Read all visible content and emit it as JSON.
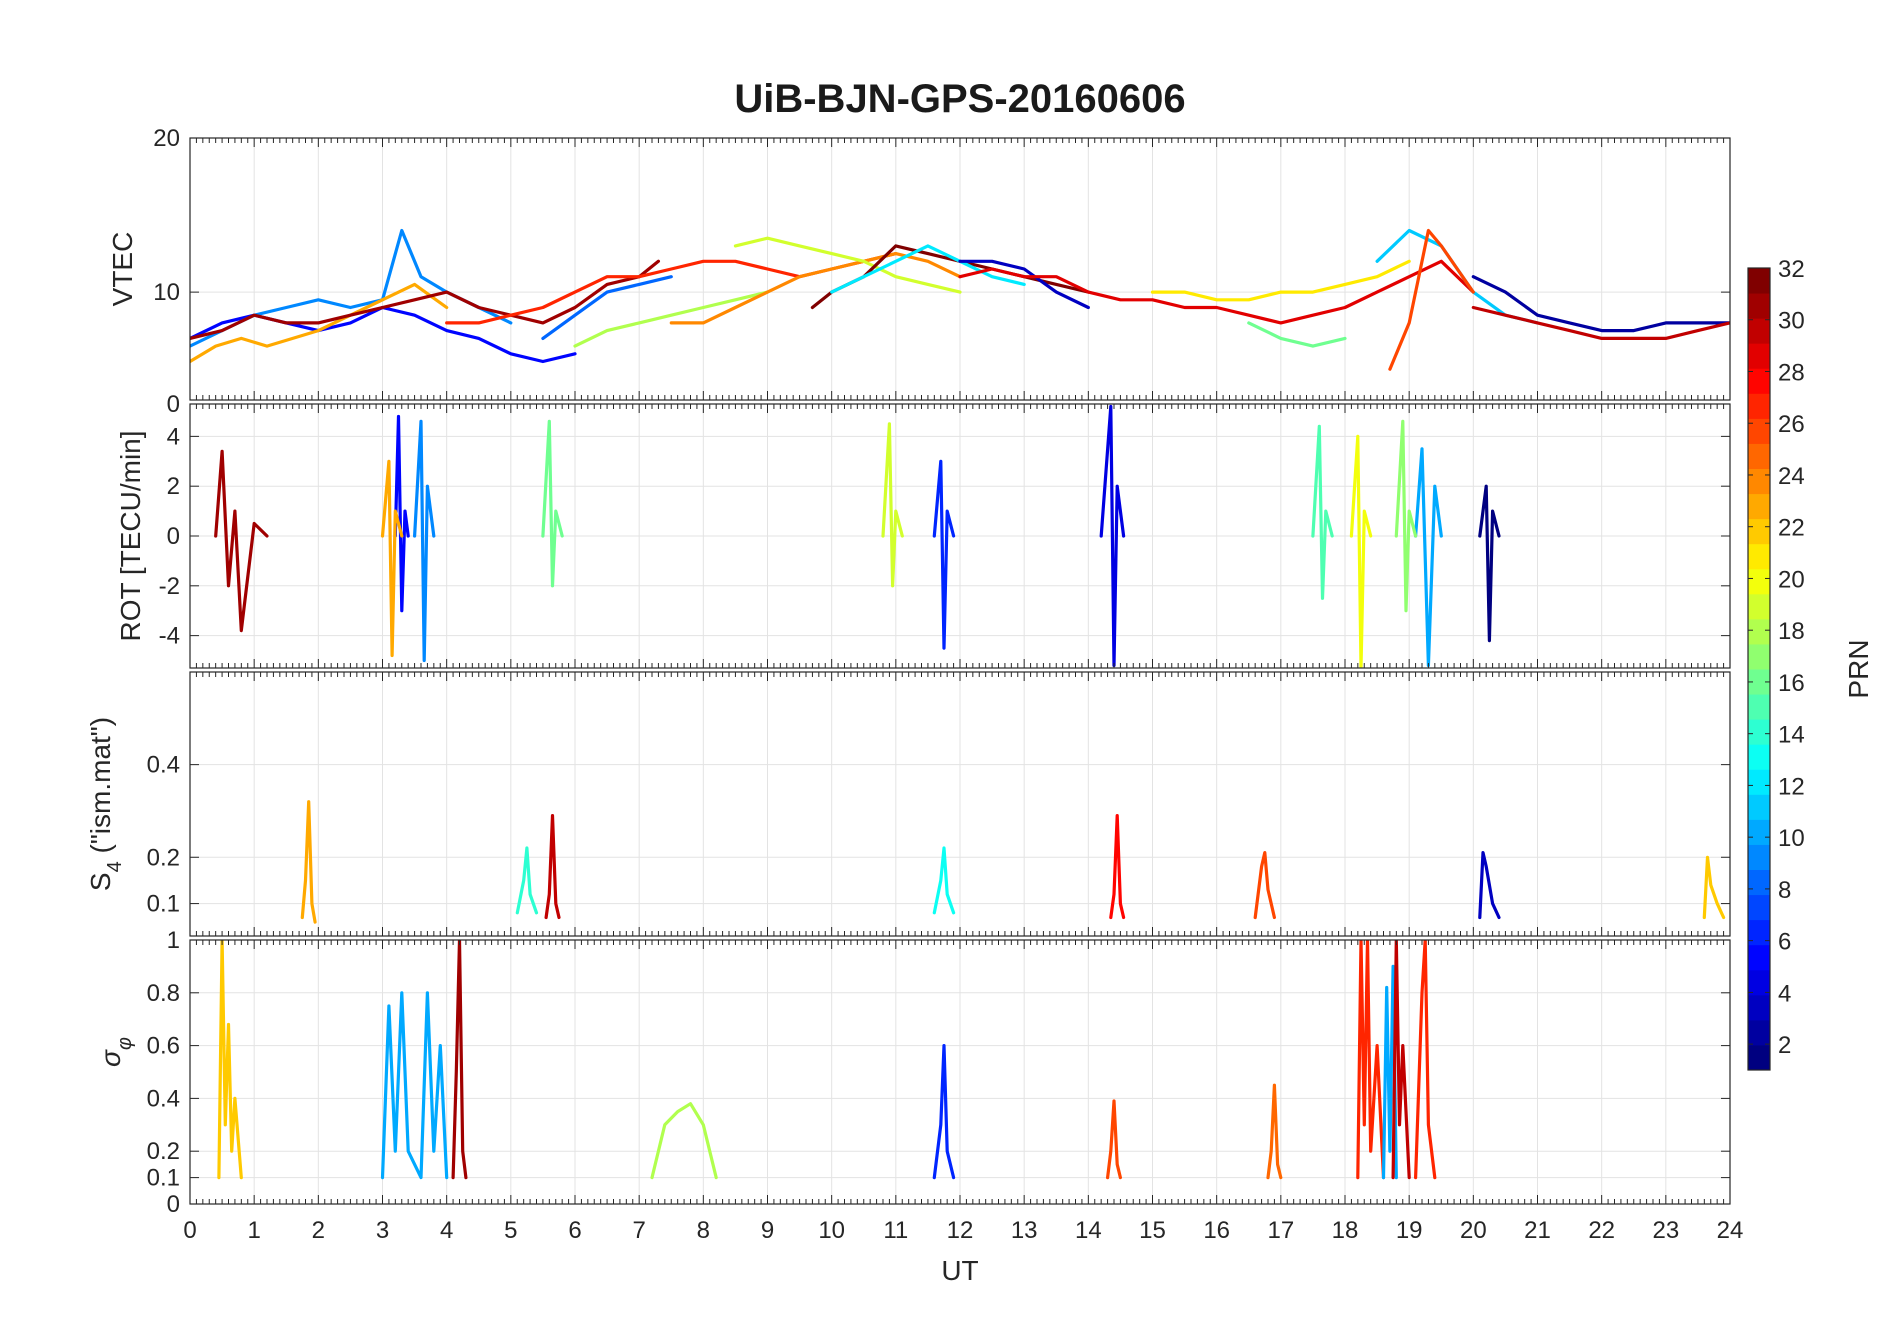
{
  "figure": {
    "title": "UiB-BJN-GPS-20160606"
  },
  "chart_data": [
    {
      "type": "line",
      "panel": "VTEC",
      "ylabel": "VTEC",
      "ylim": [
        3,
        20
      ],
      "yticks": [
        10,
        20
      ],
      "xlim": [
        0,
        24
      ],
      "grid": true,
      "series": [
        {
          "prn": 5,
          "x": [
            0,
            0.5,
            1,
            1.5,
            2,
            2.5,
            3,
            3.5,
            4,
            4.5,
            5,
            5.5,
            6
          ],
          "y": [
            7,
            8,
            8.5,
            8,
            7.5,
            8,
            9,
            8.5,
            7.5,
            7,
            6,
            5.5,
            6
          ]
        },
        {
          "prn": 9,
          "x": [
            0,
            0.5,
            1,
            1.5,
            2,
            2.5,
            3,
            3.3,
            3.6,
            4,
            4.5,
            5
          ],
          "y": [
            6.5,
            7.5,
            8.5,
            9,
            9.5,
            9,
            9.5,
            14,
            11,
            10,
            9,
            8
          ]
        },
        {
          "prn": 23,
          "x": [
            0,
            0.4,
            0.8,
            1.2,
            1.6,
            2,
            2.5,
            3,
            3.5,
            4
          ],
          "y": [
            5.5,
            6.5,
            7,
            6.5,
            7,
            7.5,
            8.5,
            9.5,
            10.5,
            9
          ]
        },
        {
          "prn": 31,
          "x": [
            0,
            0.5,
            1,
            1.5,
            2,
            2.5,
            3,
            3.5,
            4,
            4.5,
            5,
            5.5,
            6,
            6.5,
            7,
            7.3
          ],
          "y": [
            7,
            7.5,
            8.5,
            8,
            8,
            8.5,
            9,
            9.5,
            10,
            9,
            8.5,
            8,
            9,
            10.5,
            11,
            12
          ]
        },
        {
          "prn": 27,
          "x": [
            4,
            4.5,
            5,
            5.5,
            6,
            6.5,
            7,
            7.5,
            8,
            8.5,
            9,
            9.5,
            10,
            10.5,
            11
          ],
          "y": [
            8,
            8,
            8.5,
            9,
            10,
            11,
            11,
            11.5,
            12,
            12,
            11.5,
            11,
            11.5,
            12,
            12.5
          ]
        },
        {
          "prn": 8,
          "x": [
            5.5,
            6,
            6.5,
            7,
            7.5
          ],
          "y": [
            7,
            8.5,
            10,
            10.5,
            11
          ]
        },
        {
          "prn": 18,
          "x": [
            6,
            6.5,
            7,
            7.5,
            8,
            8.5,
            9
          ],
          "y": [
            6.5,
            7.5,
            8,
            8.5,
            9,
            9.5,
            10
          ]
        },
        {
          "prn": 24,
          "x": [
            7.5,
            8,
            8.5,
            9,
            9.5,
            10,
            10.5,
            11,
            11.5,
            12
          ],
          "y": [
            8,
            8,
            9,
            10,
            11,
            11.5,
            12,
            12.5,
            12,
            11
          ]
        },
        {
          "prn": 19,
          "x": [
            8.5,
            9,
            9.5,
            10,
            10.5,
            11,
            11.5,
            12
          ],
          "y": [
            13,
            13.5,
            13,
            12.5,
            12,
            11,
            10.5,
            10
          ]
        },
        {
          "prn": 32,
          "x": [
            9.7,
            10,
            10.5,
            11,
            11.5,
            12,
            12.5,
            13,
            13.5,
            14
          ],
          "y": [
            9,
            10,
            11,
            13,
            12.5,
            12,
            11.5,
            11,
            10.5,
            10
          ]
        },
        {
          "prn": 12,
          "x": [
            10,
            10.5,
            11,
            11.5,
            12,
            12.5,
            13
          ],
          "y": [
            10,
            11,
            12,
            13,
            12,
            11,
            10.5
          ]
        },
        {
          "prn": 3,
          "x": [
            12,
            12.5,
            13,
            13.5,
            14
          ],
          "y": [
            12,
            12,
            11.5,
            10,
            9
          ]
        },
        {
          "prn": 29,
          "x": [
            12,
            12.5,
            13,
            13.5,
            14,
            14.5,
            15,
            15.5,
            16,
            16.5,
            17,
            17.5,
            18,
            18.5,
            19,
            19.5,
            20
          ],
          "y": [
            11,
            11.5,
            11,
            11,
            10,
            9.5,
            9.5,
            9,
            9,
            8.5,
            8,
            8.5,
            9,
            10,
            11,
            12,
            10
          ]
        },
        {
          "prn": 21,
          "x": [
            15,
            15.5,
            16,
            16.5,
            17,
            17.5,
            18,
            18.5,
            19
          ],
          "y": [
            10,
            10,
            9.5,
            9.5,
            10,
            10,
            10.5,
            11,
            12
          ]
        },
        {
          "prn": 16,
          "x": [
            16.5,
            17,
            17.5,
            18
          ],
          "y": [
            8,
            7,
            6.5,
            7
          ]
        },
        {
          "prn": 11,
          "x": [
            18.5,
            19,
            19.5,
            20,
            20.5,
            21
          ],
          "y": [
            12,
            14,
            13,
            10,
            8.5,
            8
          ]
        },
        {
          "prn": 26,
          "x": [
            18.7,
            19,
            19.3,
            19.5,
            20
          ],
          "y": [
            5,
            8,
            14,
            13,
            10
          ]
        },
        {
          "prn": 2,
          "x": [
            20,
            20.5,
            21,
            21.5,
            22,
            22.5,
            23,
            23.5,
            24
          ],
          "y": [
            11,
            10,
            8.5,
            8,
            7.5,
            7.5,
            8,
            8,
            8
          ]
        },
        {
          "prn": 30,
          "x": [
            20,
            20.5,
            21,
            21.5,
            22,
            22.5,
            23,
            23.5,
            24
          ],
          "y": [
            9,
            8.5,
            8,
            7.5,
            7,
            7,
            7,
            7.5,
            8
          ]
        }
      ]
    },
    {
      "type": "line",
      "panel": "ROT",
      "ylabel": "ROT [TECU/min]",
      "ylim": [
        -5.3,
        5.3
      ],
      "yticks": [
        -4,
        -2,
        0,
        2,
        4
      ],
      "xlim": [
        0,
        24
      ],
      "grid": true,
      "series": [
        {
          "prn": 5,
          "x": [
            3.2,
            3.25,
            3.3,
            3.35,
            3.4
          ],
          "y": [
            0,
            4.8,
            -3,
            1,
            0
          ]
        },
        {
          "prn": 9,
          "x": [
            3.5,
            3.6,
            3.65,
            3.7,
            3.8
          ],
          "y": [
            0,
            4.6,
            -5,
            2,
            0
          ]
        },
        {
          "prn": 4,
          "x": [
            14.2,
            14.35,
            14.4,
            14.45,
            14.55
          ],
          "y": [
            0,
            5.2,
            -5.2,
            2,
            0
          ]
        },
        {
          "prn": 10,
          "x": [
            19.1,
            19.2,
            19.3,
            19.4,
            19.5
          ],
          "y": [
            0,
            3.5,
            -5.2,
            2,
            0
          ]
        },
        {
          "prn": 20,
          "x": [
            18.1,
            18.2,
            18.25,
            18.3,
            18.4
          ],
          "y": [
            0,
            4,
            -5.3,
            1,
            0
          ]
        },
        {
          "prn": 19,
          "x": [
            10.8,
            10.9,
            10.95,
            11.0,
            11.1
          ],
          "y": [
            0,
            4.5,
            -2,
            1,
            0
          ]
        },
        {
          "prn": 6,
          "x": [
            11.6,
            11.7,
            11.75,
            11.8,
            11.9
          ],
          "y": [
            0,
            3,
            -4.5,
            1,
            0
          ]
        },
        {
          "prn": 1,
          "x": [
            20.1,
            20.2,
            20.25,
            20.3,
            20.4
          ],
          "y": [
            0,
            2,
            -4.2,
            1,
            0
          ]
        },
        {
          "prn": 23,
          "x": [
            3,
            3.1,
            3.15,
            3.2,
            3.3
          ],
          "y": [
            0,
            3,
            -4.8,
            1,
            0
          ]
        },
        {
          "prn": 31,
          "x": [
            0.4,
            0.5,
            0.6,
            0.7,
            0.8,
            1.0,
            1.2
          ],
          "y": [
            0,
            3.4,
            -2,
            1,
            -3.8,
            0.5,
            0
          ]
        },
        {
          "prn": 16,
          "x": [
            5.5,
            5.6,
            5.65,
            5.7,
            5.8
          ],
          "y": [
            0,
            4.6,
            -2,
            1,
            0
          ]
        },
        {
          "prn": 15,
          "x": [
            17.5,
            17.6,
            17.65,
            17.7,
            17.8
          ],
          "y": [
            0,
            4.4,
            -2.5,
            1,
            0
          ]
        },
        {
          "prn": 17,
          "x": [
            18.8,
            18.9,
            18.95,
            19.0,
            19.1
          ],
          "y": [
            0,
            4.6,
            -3,
            1,
            0
          ]
        }
      ]
    },
    {
      "type": "line",
      "panel": "S4",
      "ylabel": "S4 (\"ism.mat\")",
      "ylim": [
        0.03,
        0.6
      ],
      "yticks": [
        0.1,
        0.2,
        0.4
      ],
      "xlim": [
        0,
        24
      ],
      "grid": true,
      "series": [
        {
          "prn": 23,
          "x": [
            1.75,
            1.8,
            1.85,
            1.9,
            1.95
          ],
          "y": [
            0.07,
            0.15,
            0.32,
            0.1,
            0.06
          ]
        },
        {
          "prn": 30,
          "x": [
            5.55,
            5.6,
            5.65,
            5.7,
            5.75
          ],
          "y": [
            0.07,
            0.12,
            0.29,
            0.1,
            0.07
          ]
        },
        {
          "prn": 28,
          "x": [
            14.35,
            14.4,
            14.45,
            14.5,
            14.55
          ],
          "y": [
            0.07,
            0.12,
            0.29,
            0.1,
            0.07
          ]
        },
        {
          "prn": 14,
          "x": [
            5.1,
            5.2,
            5.25,
            5.3,
            5.4
          ],
          "y": [
            0.08,
            0.15,
            0.22,
            0.12,
            0.08
          ]
        },
        {
          "prn": 13,
          "x": [
            11.6,
            11.7,
            11.75,
            11.8,
            11.9
          ],
          "y": [
            0.08,
            0.15,
            0.22,
            0.12,
            0.08
          ]
        },
        {
          "prn": 26,
          "x": [
            16.6,
            16.7,
            16.75,
            16.8,
            16.9
          ],
          "y": [
            0.07,
            0.18,
            0.21,
            0.13,
            0.07
          ]
        },
        {
          "prn": 3,
          "x": [
            20.1,
            20.15,
            20.2,
            20.3,
            20.4
          ],
          "y": [
            0.07,
            0.21,
            0.18,
            0.1,
            0.07
          ]
        },
        {
          "prn": 22,
          "x": [
            23.6,
            23.65,
            23.7,
            23.8,
            23.9
          ],
          "y": [
            0.07,
            0.2,
            0.14,
            0.1,
            0.07
          ]
        }
      ]
    },
    {
      "type": "line",
      "panel": "sigma_phi",
      "ylabel": "σφ",
      "ylim": [
        0,
        1
      ],
      "yticks": [
        0,
        0.1,
        0.2,
        0.4,
        0.6,
        0.8,
        1
      ],
      "xlim": [
        0,
        24
      ],
      "xlabel": "UT",
      "xticks": [
        0,
        1,
        2,
        3,
        4,
        5,
        6,
        7,
        8,
        9,
        10,
        11,
        12,
        13,
        14,
        15,
        16,
        17,
        18,
        19,
        20,
        21,
        22,
        23,
        24
      ],
      "grid": true,
      "series": [
        {
          "prn": 22,
          "x": [
            0.45,
            0.5,
            0.55,
            0.6,
            0.65,
            0.7,
            0.8
          ],
          "y": [
            0.1,
            1,
            0.3,
            0.68,
            0.2,
            0.4,
            0.1
          ]
        },
        {
          "prn": 10,
          "x": [
            3.0,
            3.1,
            3.2,
            3.3,
            3.4,
            3.6,
            3.7,
            3.8,
            3.9,
            4.0
          ],
          "y": [
            0.1,
            0.75,
            0.2,
            0.8,
            0.2,
            0.1,
            0.8,
            0.2,
            0.6,
            0.1
          ]
        },
        {
          "prn": 31,
          "x": [
            4.1,
            4.15,
            4.2,
            4.25,
            4.3
          ],
          "y": [
            0.1,
            0.5,
            1,
            0.2,
            0.1
          ]
        },
        {
          "prn": 18,
          "x": [
            7.2,
            7.4,
            7.6,
            7.8,
            8.0,
            8.2
          ],
          "y": [
            0.1,
            0.3,
            0.35,
            0.38,
            0.3,
            0.1
          ]
        },
        {
          "prn": 6,
          "x": [
            11.6,
            11.7,
            11.75,
            11.8,
            11.9
          ],
          "y": [
            0.1,
            0.3,
            0.6,
            0.2,
            0.1
          ]
        },
        {
          "prn": 26,
          "x": [
            14.3,
            14.35,
            14.4,
            14.45,
            14.5
          ],
          "y": [
            0.1,
            0.2,
            0.39,
            0.15,
            0.1
          ]
        },
        {
          "prn": 25,
          "x": [
            16.8,
            16.85,
            16.9,
            16.95,
            17.0
          ],
          "y": [
            0.1,
            0.2,
            0.45,
            0.15,
            0.1
          ]
        },
        {
          "prn": 27,
          "x": [
            18.2,
            18.25,
            18.3,
            18.35,
            18.4,
            18.5,
            18.6
          ],
          "y": [
            0.1,
            1,
            0.3,
            1,
            0.2,
            0.6,
            0.1
          ]
        },
        {
          "prn": 10,
          "x": [
            18.6,
            18.65,
            18.7,
            18.75,
            18.8
          ],
          "y": [
            0.1,
            0.82,
            0.2,
            0.9,
            0.1
          ]
        },
        {
          "prn": 30,
          "x": [
            18.75,
            18.8,
            18.85,
            18.9,
            19.0
          ],
          "y": [
            0.1,
            1,
            0.3,
            0.6,
            0.1
          ]
        },
        {
          "prn": 27,
          "x": [
            19.1,
            19.2,
            19.25,
            19.3,
            19.4
          ],
          "y": [
            0.1,
            0.8,
            1,
            0.3,
            0.1
          ]
        }
      ]
    }
  ],
  "colorbar": {
    "label": "PRN",
    "range": [
      1,
      32
    ],
    "ticks": [
      2,
      4,
      6,
      8,
      10,
      12,
      14,
      16,
      18,
      20,
      22,
      24,
      26,
      28,
      30,
      32
    ],
    "colormap": "jet",
    "segments": 32
  }
}
